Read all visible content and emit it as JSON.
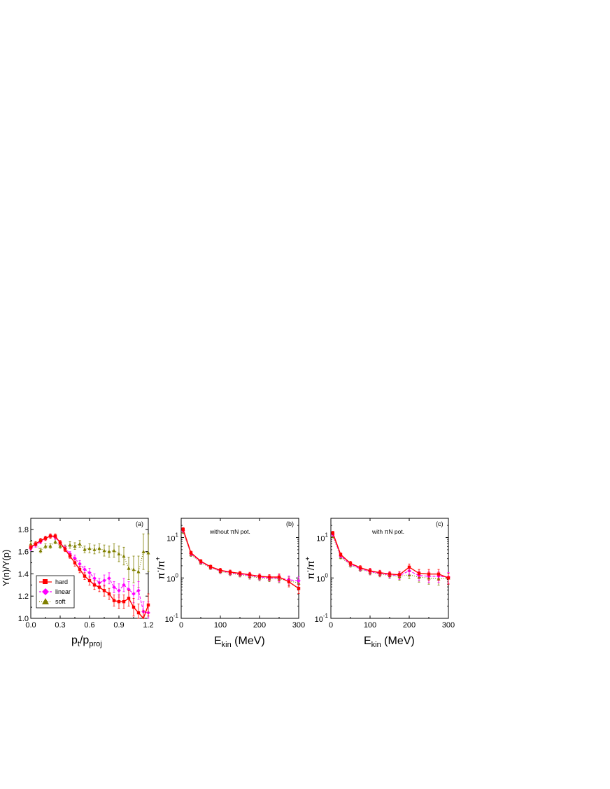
{
  "colors": {
    "hard": "#ff0000",
    "linear": "#ff00ff",
    "soft": "#808000",
    "axis": "#000000"
  },
  "chart_data": [
    {
      "type": "line",
      "panel_label": "(a)",
      "xlabel_main": "p",
      "xlabel_sub1": "t",
      "xlabel_mid": "/p",
      "xlabel_sub2": "proj",
      "ylabel": "Y(n)/Y(p)",
      "xlim": [
        0.0,
        1.2
      ],
      "ylim": [
        1.0,
        1.9
      ],
      "xscale": "linear",
      "yscale": "linear",
      "xticks": [
        0.0,
        0.3,
        0.6,
        0.9,
        1.2
      ],
      "xtick_labels": [
        "0.0",
        "0.3",
        "0.6",
        "0.9",
        "1.2"
      ],
      "yticks": [
        1.0,
        1.2,
        1.4,
        1.6,
        1.8
      ],
      "ytick_labels": [
        "1.0",
        "1.2",
        "1.4",
        "1.6",
        "1.8"
      ],
      "legend": {
        "placement": "lower-left",
        "entries": [
          "hard",
          "linear",
          "soft"
        ]
      },
      "series": [
        {
          "name": "hard",
          "marker": "square",
          "line": "solid",
          "x": [
            0.0,
            0.05,
            0.1,
            0.15,
            0.2,
            0.25,
            0.3,
            0.35,
            0.4,
            0.45,
            0.5,
            0.55,
            0.6,
            0.65,
            0.7,
            0.75,
            0.8,
            0.85,
            0.9,
            0.95,
            1.0,
            1.05,
            1.1,
            1.15,
            1.2
          ],
          "y": [
            1.64,
            1.67,
            1.7,
            1.72,
            1.74,
            1.74,
            1.68,
            1.62,
            1.56,
            1.5,
            1.44,
            1.38,
            1.34,
            1.3,
            1.28,
            1.25,
            1.22,
            1.16,
            1.15,
            1.15,
            1.18,
            1.1,
            1.05,
            0.98,
            1.12
          ],
          "err": [
            0.02,
            0.02,
            0.02,
            0.02,
            0.02,
            0.02,
            0.02,
            0.02,
            0.02,
            0.03,
            0.03,
            0.03,
            0.04,
            0.04,
            0.04,
            0.05,
            0.05,
            0.05,
            0.06,
            0.06,
            0.07,
            0.08,
            0.08,
            0.09,
            0.1
          ]
        },
        {
          "name": "linear",
          "marker": "diamond",
          "line": "dashed",
          "x": [
            0.0,
            0.05,
            0.1,
            0.15,
            0.2,
            0.25,
            0.3,
            0.35,
            0.4,
            0.45,
            0.5,
            0.55,
            0.6,
            0.65,
            0.7,
            0.75,
            0.8,
            0.85,
            0.9,
            0.95,
            1.0,
            1.05,
            1.1,
            1.15,
            1.2
          ],
          "y": [
            1.63,
            1.66,
            1.69,
            1.72,
            1.74,
            1.73,
            1.68,
            1.63,
            1.58,
            1.54,
            1.49,
            1.44,
            1.41,
            1.36,
            1.32,
            1.34,
            1.36,
            1.28,
            1.25,
            1.3,
            1.26,
            1.22,
            1.25,
            1.06,
            1.05
          ],
          "err": [
            0.02,
            0.02,
            0.02,
            0.02,
            0.02,
            0.02,
            0.02,
            0.02,
            0.02,
            0.03,
            0.03,
            0.03,
            0.04,
            0.04,
            0.04,
            0.05,
            0.05,
            0.05,
            0.06,
            0.06,
            0.07,
            0.08,
            0.08,
            0.09,
            0.1
          ]
        },
        {
          "name": "soft",
          "marker": "triangle",
          "line": "dotted",
          "x": [
            0.0,
            0.05,
            0.1,
            0.15,
            0.2,
            0.25,
            0.3,
            0.35,
            0.4,
            0.45,
            0.5,
            0.55,
            0.6,
            0.65,
            0.7,
            0.75,
            0.8,
            0.85,
            0.9,
            0.95,
            1.0,
            1.05,
            1.1,
            1.15,
            1.2
          ],
          "y": [
            1.67,
            1.67,
            1.61,
            1.65,
            1.65,
            1.69,
            1.65,
            1.64,
            1.66,
            1.65,
            1.67,
            1.62,
            1.63,
            1.62,
            1.63,
            1.61,
            1.6,
            1.61,
            1.58,
            1.56,
            1.45,
            1.44,
            1.42,
            1.6,
            1.59
          ],
          "err": [
            0.02,
            0.02,
            0.02,
            0.02,
            0.02,
            0.02,
            0.02,
            0.02,
            0.03,
            0.03,
            0.03,
            0.03,
            0.04,
            0.04,
            0.04,
            0.05,
            0.05,
            0.06,
            0.07,
            0.08,
            0.1,
            0.12,
            0.14,
            0.16,
            0.17
          ]
        }
      ]
    },
    {
      "type": "line",
      "panel_label": "(b)",
      "annotation": "without πN pot.",
      "xlabel_main": "E",
      "xlabel_sub1": "kin",
      "xlabel_mid": " (MeV)",
      "ylabel_main": "π",
      "ylabel_sup1": "-",
      "ylabel_mid": "/π",
      "ylabel_sup2": "+",
      "xlim": [
        0,
        300
      ],
      "ylim": [
        0.1,
        30
      ],
      "xscale": "linear",
      "yscale": "log",
      "xticks": [
        0,
        100,
        200,
        300
      ],
      "xtick_labels": [
        "0",
        "100",
        "200",
        "300"
      ],
      "yticks": [
        0.1,
        1,
        10
      ],
      "ytick_bases": [
        "10",
        "10",
        "10"
      ],
      "ytick_exps": [
        "-1",
        "0",
        "1"
      ],
      "series": [
        {
          "name": "hard",
          "marker": "square",
          "line": "solid",
          "x": [
            5,
            25,
            50,
            75,
            100,
            125,
            150,
            175,
            200,
            225,
            250,
            275,
            300
          ],
          "y": [
            16,
            4.2,
            2.6,
            1.9,
            1.55,
            1.4,
            1.3,
            1.2,
            1.1,
            1.05,
            1.05,
            0.8,
            0.55
          ],
          "err": [
            0.1,
            0.1,
            0.1,
            0.1,
            0.12,
            0.12,
            0.12,
            0.15,
            0.15,
            0.15,
            0.2,
            0.25,
            0.25
          ]
        },
        {
          "name": "linear",
          "marker": "diamond",
          "line": "dashed",
          "x": [
            5,
            25,
            50,
            75,
            100,
            125,
            150,
            175,
            200,
            225,
            250,
            275,
            300
          ],
          "y": [
            15,
            4.0,
            2.5,
            1.85,
            1.5,
            1.35,
            1.25,
            1.15,
            1.05,
            1.0,
            1.0,
            0.9,
            0.85
          ],
          "err": [
            0.1,
            0.1,
            0.1,
            0.1,
            0.12,
            0.12,
            0.12,
            0.15,
            0.15,
            0.15,
            0.2,
            0.25,
            0.25
          ]
        },
        {
          "name": "soft",
          "marker": "triangle",
          "line": "dotted",
          "x": [
            5,
            25,
            50,
            75,
            100,
            125,
            150,
            175,
            200,
            225,
            250,
            275,
            300
          ],
          "y": [
            14,
            3.8,
            2.4,
            1.8,
            1.45,
            1.3,
            1.2,
            1.1,
            1.0,
            0.95,
            0.95,
            0.85,
            0.75
          ],
          "err": [
            0.1,
            0.1,
            0.1,
            0.1,
            0.12,
            0.12,
            0.12,
            0.15,
            0.15,
            0.15,
            0.2,
            0.25,
            0.25
          ]
        }
      ]
    },
    {
      "type": "line",
      "panel_label": "(c)",
      "annotation": "with πN pot.",
      "xlabel_main": "E",
      "xlabel_sub1": "kin",
      "xlabel_mid": " (MeV)",
      "ylabel_main": "π",
      "ylabel_sup1": "-",
      "ylabel_mid": "/π",
      "ylabel_sup2": "+",
      "xlim": [
        0,
        300
      ],
      "ylim": [
        0.1,
        30
      ],
      "xscale": "linear",
      "yscale": "log",
      "xticks": [
        0,
        100,
        200,
        300
      ],
      "xtick_labels": [
        "0",
        "100",
        "200",
        "300"
      ],
      "yticks": [
        0.1,
        1,
        10
      ],
      "ytick_bases": [
        "10",
        "10",
        "10"
      ],
      "ytick_exps": [
        "-1",
        "0",
        "1"
      ],
      "series": [
        {
          "name": "hard",
          "marker": "square",
          "line": "solid",
          "x": [
            5,
            25,
            50,
            75,
            100,
            125,
            150,
            175,
            200,
            225,
            250,
            275,
            300
          ],
          "y": [
            13,
            3.8,
            2.3,
            1.8,
            1.5,
            1.35,
            1.25,
            1.2,
            1.85,
            1.3,
            1.25,
            1.25,
            1.0
          ],
          "err": [
            0.1,
            0.1,
            0.12,
            0.12,
            0.15,
            0.15,
            0.15,
            0.2,
            0.2,
            0.25,
            0.3,
            0.3,
            0.3
          ]
        },
        {
          "name": "linear",
          "marker": "diamond",
          "line": "dashed",
          "x": [
            5,
            25,
            50,
            75,
            100,
            125,
            150,
            175,
            200,
            225,
            250,
            275,
            300
          ],
          "y": [
            12,
            3.5,
            2.2,
            1.7,
            1.45,
            1.3,
            1.2,
            1.15,
            1.5,
            1.15,
            1.1,
            1.1,
            1.05
          ],
          "err": [
            0.1,
            0.1,
            0.12,
            0.12,
            0.15,
            0.15,
            0.15,
            0.2,
            0.2,
            0.25,
            0.3,
            0.3,
            0.3
          ]
        },
        {
          "name": "soft",
          "marker": "triangle",
          "line": "dotted",
          "x": [
            5,
            25,
            50,
            75,
            100,
            125,
            150,
            175,
            200,
            225,
            250,
            275,
            300
          ],
          "y": [
            11,
            3.3,
            2.1,
            1.65,
            1.4,
            1.25,
            1.15,
            1.1,
            1.2,
            1.05,
            1.0,
            0.95,
            1.0
          ],
          "err": [
            0.1,
            0.1,
            0.12,
            0.12,
            0.15,
            0.15,
            0.15,
            0.2,
            0.2,
            0.25,
            0.3,
            0.3,
            0.3
          ]
        }
      ]
    }
  ]
}
